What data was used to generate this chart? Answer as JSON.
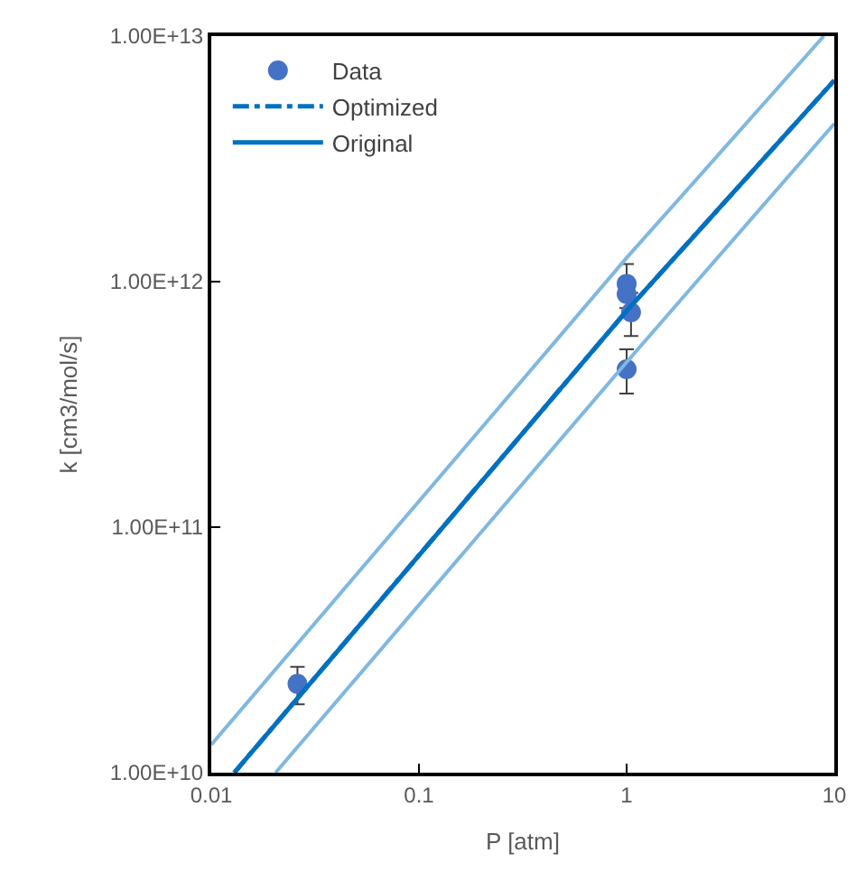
{
  "chart_data": {
    "type": "line",
    "xlabel": "P [atm]",
    "ylabel": "k [cm3/mol/s]",
    "log": "xy",
    "legend": "top left",
    "xlim": [
      0.01,
      10
    ],
    "xticks": [
      0.01,
      0.1,
      1,
      10
    ],
    "ylim": [
      10000000000.0,
      10000000000000.0
    ],
    "yticks": [
      {
        "value": 10000000000.0,
        "label": "1.00E+10"
      },
      {
        "value": 100000000000.0,
        "label": "1.00E+11"
      },
      {
        "value": 1000000000000.0,
        "label": "1.00E+12"
      },
      {
        "value": 10000000000000.0,
        "label": "1.00E+13"
      }
    ],
    "series": [
      {
        "name": "Data",
        "type": "scatter",
        "marker": "circle",
        "color": "#4472c4",
        "x": [
          0.026,
          1.0,
          1.0,
          1.05,
          1.0
        ],
        "values": [
          23000000000.0,
          980000000000.0,
          890000000000.0,
          750000000000.0,
          440000000000.0
        ],
        "errors": [
          4000000000.0,
          200000000000.0,
          null,
          150000000000.0,
          90000000000.0
        ]
      },
      {
        "name": "Optimized",
        "line_style": "dashdot",
        "color": "#0070c0",
        "x": [
          0.0129,
          1,
          10
        ],
        "values": [
          10000000000.0,
          760000000000.0,
          6600000000000.0
        ]
      },
      {
        "name": "Original",
        "line_style": "solid",
        "color": "#0070c0",
        "x": [
          0.0129,
          1,
          10
        ],
        "values": [
          10000000000.0,
          760000000000.0,
          6600000000000.0
        ]
      },
      {
        "line_style": "solid",
        "color": "#7fb8e0",
        "x": [
          0.01,
          1,
          8.9
        ],
        "values": [
          13000000000.0,
          1250000000000.0,
          10000000000000.0
        ]
      },
      {
        "line_style": "solid",
        "color": "#7fb8e0",
        "x": [
          0.0204,
          1,
          10
        ],
        "values": [
          10000000000.0,
          470000000000.0,
          4400000000000.0
        ]
      }
    ]
  }
}
